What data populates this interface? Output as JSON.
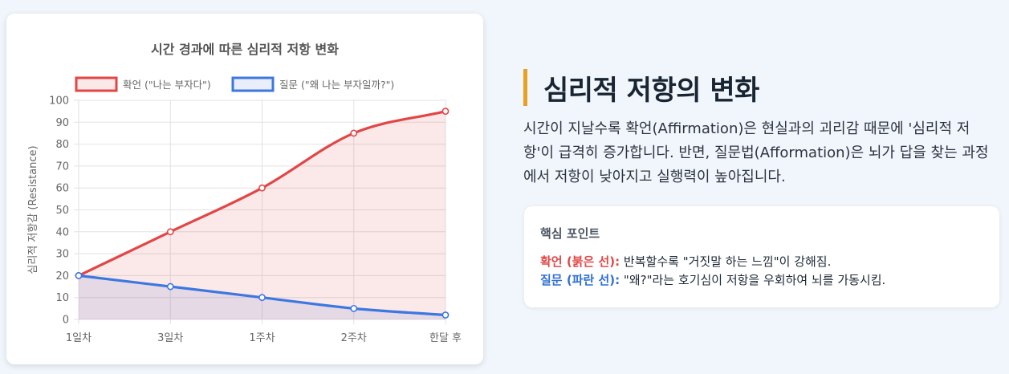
{
  "chart_data": {
    "type": "line",
    "title": "시간 경과에 따른 심리적 저항 변화",
    "ylabel": "심리적 저항감 (Resistance)",
    "xlabel": "",
    "categories": [
      "1일차",
      "3일차",
      "1주차",
      "2주차",
      "한달 후"
    ],
    "ylim": [
      0,
      100
    ],
    "yticks": [
      0,
      10,
      20,
      30,
      40,
      50,
      60,
      70,
      80,
      90,
      100
    ],
    "grid": true,
    "legend": "top",
    "series": [
      {
        "name": "확언 (\"나는 부자다\")",
        "values": [
          20,
          40,
          60,
          85,
          95
        ],
        "color": "#e24646",
        "fill": "rgba(226,70,70,0.12)"
      },
      {
        "name": "질문 (\"왜 나는 부자일까?\")",
        "values": [
          20,
          15,
          10,
          5,
          2
        ],
        "color": "#3c78e0",
        "fill": "rgba(80,110,210,0.12)"
      }
    ]
  },
  "info": {
    "heading": "심리적 저항의 변화",
    "description": "시간이 지날수록 확언(Affirmation)은 현실과의 괴리감 때문에 '심리적 저항'이 급격히 증가합니다. 반면, 질문법(Afformation)은 뇌가 답을 찾는 과정에서 저항이 낮아지고 실행력이 높아집니다.",
    "points_title": "핵심 포인트",
    "point_red_label": "확언 (붉은 선):",
    "point_red_text": " 반복할수록 \"거짓말 하는 느낌\"이 강해짐.",
    "point_blue_label": "질문 (파란 선):",
    "point_blue_text": " \"왜?\"라는 호기심이 저항을 우회하여 뇌를 가동시킴.",
    "accent_color": "#e8a020"
  }
}
